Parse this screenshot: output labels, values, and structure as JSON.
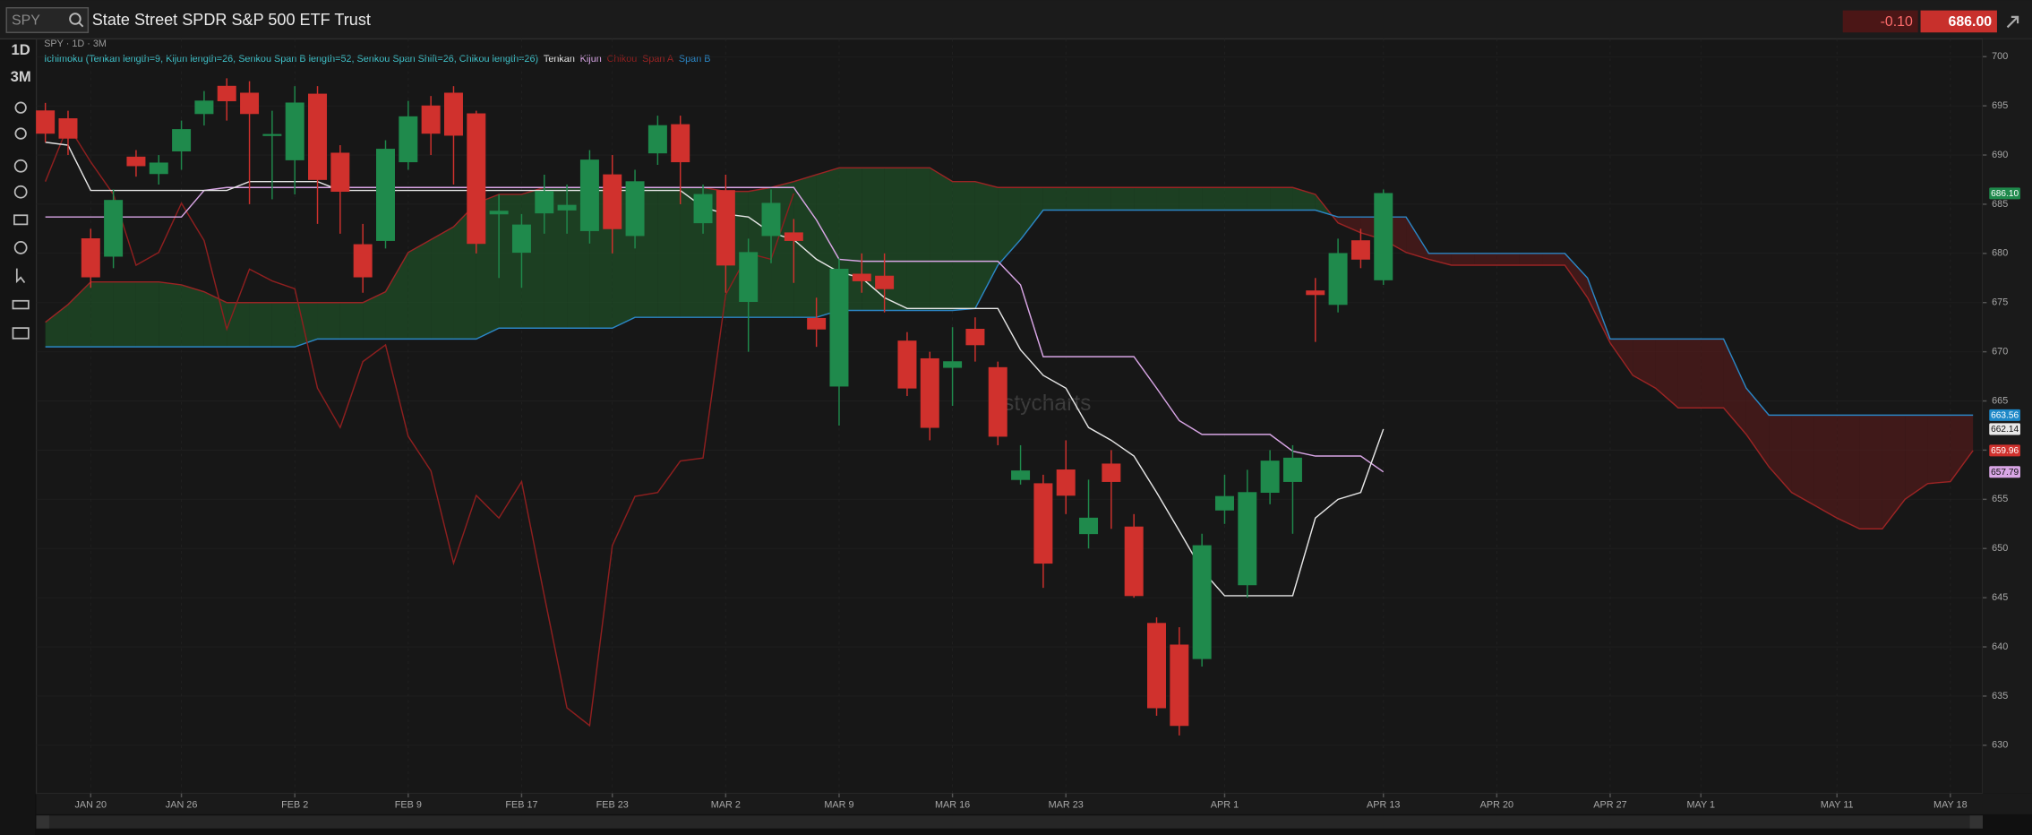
{
  "header": {
    "symbol": "SPY",
    "name": "State Street SPDR S&P 500 ETF Trust",
    "change": "-0.10",
    "price": "686.00"
  },
  "toolbar": {
    "interval": "1D",
    "range": "3M"
  },
  "chart_data": {
    "type": "candlestick",
    "subtitle": "SPY · 1D · 3M",
    "indicator": "Ichimoku (Tenkan length=9, Kijun length=26, Senkou Span B length=52, Senkou Span Shift=26, Chikou length=26)",
    "watermark": "stycharts",
    "categories": [
      null,
      null,
      "JAN 20",
      null,
      null,
      null,
      "JAN 26",
      null,
      null,
      null,
      null,
      "FEB 2",
      null,
      null,
      null,
      null,
      "FEB 9",
      null,
      null,
      null,
      null,
      "FEB 17",
      null,
      null,
      null,
      "FEB 23",
      null,
      null,
      null,
      null,
      "MAR 2",
      null,
      null,
      null,
      null,
      "MAR 9",
      null,
      null,
      null,
      null,
      "MAR 16",
      null,
      null,
      null,
      null,
      "MAR 23",
      null,
      null,
      null,
      null,
      null,
      null,
      "APR 1",
      null,
      null,
      null,
      null,
      null,
      null,
      "APR 13",
      null,
      null,
      null,
      null,
      "APR 20",
      null,
      null,
      null,
      null,
      "APR 27",
      null,
      null,
      null,
      "MAY 1",
      null,
      null,
      null,
      null,
      null,
      "MAY 11",
      null,
      null,
      null,
      null,
      "MAY 18",
      null
    ],
    "open": [
      694.5,
      693.7,
      681.5,
      679.7,
      689.8,
      688.1,
      690.4,
      694.2,
      697,
      696.3,
      692,
      689.5,
      696.2,
      690.2,
      680.9,
      681.3,
      689.3,
      695,
      696.3,
      694.2,
      684,
      680.1,
      684.1,
      684.4,
      682.3,
      688,
      681.8,
      690.2,
      693.1,
      683.1,
      686.4,
      675.1,
      681.8,
      682.1,
      673.4,
      666.5,
      677.9,
      677.7,
      671.1,
      669.3,
      668.4,
      672.3,
      668.4,
      657,
      656.6,
      658,
      651.5,
      658.6,
      652.2,
      642.4,
      640.2,
      638.8,
      653.9,
      646.3,
      655.7,
      656.8,
      676.2,
      674.8,
      681.3,
      677.3,
      null,
      null,
      null,
      null,
      null,
      null,
      null,
      null,
      null,
      null,
      null,
      null,
      null,
      null,
      null,
      null,
      null,
      null,
      null,
      null,
      null,
      null,
      null,
      null,
      null,
      null
    ],
    "high": [
      695.3,
      694.5,
      682.5,
      686.5,
      690.5,
      690,
      693.5,
      696.5,
      697.8,
      697.5,
      694.5,
      697,
      697,
      691,
      683,
      691.5,
      695.5,
      696,
      697,
      694.5,
      686,
      684,
      688,
      687,
      690.5,
      690,
      688.5,
      694,
      694,
      687,
      688,
      681.5,
      686.5,
      683.5,
      675.5,
      679.5,
      680,
      680,
      672,
      670,
      672.5,
      673.5,
      669,
      660.5,
      657.5,
      661,
      657,
      660,
      653.5,
      643,
      642,
      651.5,
      657.5,
      658,
      660,
      660.5,
      677.5,
      681.5,
      682.5,
      686.5,
      null,
      null,
      null,
      null,
      null,
      null,
      null,
      null,
      null,
      null,
      null,
      null,
      null,
      null,
      null,
      null,
      null,
      null,
      null,
      null,
      null,
      null,
      null,
      null,
      null,
      null
    ],
    "low": [
      691.3,
      690,
      676.5,
      678.5,
      687.8,
      687,
      688.5,
      693,
      693.5,
      685,
      685.5,
      686,
      683,
      682,
      676,
      680.5,
      688.5,
      690,
      687,
      680,
      677.5,
      676.5,
      682,
      682,
      681,
      680,
      680.5,
      689,
      685,
      682,
      676,
      670,
      679,
      677,
      670.5,
      662.5,
      676,
      674,
      665.5,
      661,
      664.5,
      669,
      660.5,
      656.5,
      646,
      653.5,
      650,
      652,
      645,
      633,
      631,
      638,
      652.5,
      645,
      654.5,
      651.5,
      671,
      674,
      678.5,
      676.8,
      null,
      null,
      null,
      null,
      null,
      null,
      null,
      null,
      null,
      null,
      null,
      null,
      null,
      null,
      null,
      null,
      null,
      null,
      null,
      null,
      null,
      null,
      null,
      null,
      null,
      null
    ],
    "close": [
      692.2,
      691.7,
      677.6,
      685.4,
      688.9,
      689.2,
      692.6,
      695.5,
      695.5,
      694.2,
      692.1,
      695.3,
      687.5,
      686.3,
      677.6,
      690.6,
      693.9,
      692.2,
      692,
      681,
      684.3,
      682.9,
      686.3,
      684.9,
      689.5,
      682.5,
      687.3,
      693,
      689.3,
      686,
      678.8,
      680.1,
      685.1,
      681.3,
      672.3,
      678.4,
      677.2,
      676.4,
      666.3,
      662.3,
      669,
      670.7,
      661.4,
      657.9,
      648.5,
      655.4,
      653.1,
      656.8,
      645.2,
      633.8,
      632,
      650.3,
      655.3,
      655.7,
      658.9,
      659.2,
      675.8,
      680,
      679.4,
      686.1,
      null,
      null,
      null,
      null,
      null,
      null,
      null,
      null,
      null,
      null,
      null,
      null,
      null,
      null,
      null,
      null,
      null,
      null,
      null,
      null,
      null,
      null,
      null,
      null,
      null,
      null
    ],
    "up_color": "#1f8a4c",
    "down_color": "#d0312d",
    "series": [
      {
        "name": "Tenkan",
        "color": "#e6e6e6",
        "values": [
          691.3,
          691,
          686.4,
          686.4,
          686.4,
          686.4,
          686.4,
          686.4,
          686.4,
          687.3,
          687.3,
          687.3,
          687.3,
          686.4,
          686.4,
          686.4,
          686.4,
          686.4,
          686.4,
          686.4,
          686.4,
          686.4,
          686.4,
          686.4,
          686.4,
          686.4,
          686.4,
          686.4,
          686.4,
          684.7,
          684,
          683.7,
          682.1,
          681.4,
          679.4,
          678.1,
          677.5,
          675.5,
          674.4,
          674.4,
          674.4,
          674.4,
          674.4,
          670.2,
          667.6,
          666.3,
          662.3,
          661,
          659.4,
          655.7,
          651.8,
          647.8,
          645.2,
          645.2,
          645.2,
          645.2,
          653.1,
          655,
          655.7,
          662.14,
          null,
          null,
          null,
          null,
          null,
          null,
          null,
          null,
          null,
          null,
          null,
          null,
          null,
          null,
          null,
          null,
          null,
          null,
          null,
          null,
          null,
          null,
          null,
          null,
          null,
          null
        ]
      },
      {
        "name": "Kijun",
        "color": "#d9a6e6",
        "values": [
          683.7,
          683.7,
          683.7,
          683.7,
          683.7,
          683.7,
          683.7,
          686.4,
          686.7,
          686.7,
          686.7,
          686.7,
          686.7,
          686.7,
          686.7,
          686.7,
          686.7,
          686.7,
          686.7,
          686.7,
          686.7,
          686.7,
          686.7,
          686.7,
          686.7,
          686.7,
          686.7,
          686.7,
          686.7,
          686.7,
          686.7,
          686.7,
          686.7,
          686.7,
          683.4,
          679.4,
          679.2,
          679.2,
          679.2,
          679.2,
          679.2,
          679.2,
          679.2,
          676.8,
          669.5,
          669.5,
          669.5,
          669.5,
          669.5,
          666.3,
          663,
          661.6,
          661.6,
          661.6,
          661.6,
          659.9,
          659.4,
          659.4,
          659.4,
          657.79,
          null,
          null,
          null,
          null,
          null,
          null,
          null,
          null,
          null,
          null,
          null,
          null,
          null,
          null,
          null,
          null,
          null,
          null,
          null,
          null,
          null,
          null,
          null,
          null,
          null,
          null
        ]
      },
      {
        "name": "Chikou",
        "color": "#8e1f1f",
        "values": [
          687.3,
          693,
          689.3,
          686,
          678.8,
          680.1,
          685.1,
          681.3,
          672.3,
          678.4,
          677.2,
          676.4,
          666.3,
          662.3,
          669,
          670.7,
          661.4,
          657.9,
          648.5,
          655.4,
          653.1,
          656.8,
          645.2,
          633.8,
          632,
          650.3,
          655.3,
          655.7,
          658.9,
          659.2,
          675.8,
          680,
          679.4,
          686.1,
          null,
          null,
          null,
          null,
          null,
          null,
          null,
          null,
          null,
          null,
          null,
          null,
          null,
          null,
          null,
          null,
          null,
          null,
          null,
          null,
          null,
          null,
          null,
          null,
          null,
          null,
          null,
          null,
          null,
          null,
          null,
          null,
          null,
          null,
          null,
          null,
          null,
          null,
          null,
          null,
          null,
          null,
          null,
          null,
          null,
          null,
          null,
          null,
          null,
          null,
          null,
          null
        ]
      },
      {
        "name": "Span A",
        "color": "#9b2424",
        "values": [
          673,
          674.8,
          677.1,
          677.1,
          677.1,
          677.1,
          676.8,
          676.1,
          675,
          675,
          675,
          675,
          675,
          675,
          675,
          676.1,
          680.1,
          681.4,
          682.7,
          685.1,
          686,
          686,
          686.7,
          686.7,
          686.7,
          686.7,
          686.7,
          686.7,
          686.7,
          686.7,
          686.3,
          686.3,
          686.7,
          687.3,
          688,
          688.7,
          688.7,
          688.7,
          688.7,
          688.7,
          687.3,
          687.3,
          686.7,
          686.7,
          686.7,
          686.7,
          686.7,
          686.7,
          686.7,
          686.7,
          686.7,
          686.7,
          686.7,
          686.7,
          686.7,
          686.7,
          686,
          683.1,
          682.1,
          681.4,
          680.1,
          679.4,
          678.8,
          678.8,
          678.8,
          678.8,
          678.8,
          678.8,
          675.5,
          670.9,
          667.6,
          666.3,
          664.3,
          664.3,
          664.3,
          661.6,
          658.3,
          655.7,
          654.4,
          653.1,
          652,
          652,
          655,
          656.6,
          656.8,
          659.96
        ]
      },
      {
        "name": "Span B",
        "color": "#2b86c5",
        "values": [
          670.5,
          670.5,
          670.5,
          670.5,
          670.5,
          670.5,
          670.5,
          670.5,
          670.5,
          670.5,
          670.5,
          670.5,
          671.3,
          671.3,
          671.3,
          671.3,
          671.3,
          671.3,
          671.3,
          671.3,
          672.4,
          672.4,
          672.4,
          672.4,
          672.4,
          672.4,
          673.5,
          673.5,
          673.5,
          673.5,
          673.5,
          673.5,
          673.5,
          673.5,
          673.5,
          674.2,
          674.2,
          674.2,
          674.2,
          674.2,
          674.2,
          674.4,
          678.8,
          681.4,
          684.4,
          684.4,
          684.4,
          684.4,
          684.4,
          684.4,
          684.4,
          684.4,
          684.4,
          684.4,
          684.4,
          684.4,
          684.4,
          683.7,
          683.7,
          683.7,
          683.7,
          680,
          680,
          680,
          680,
          680,
          680,
          680,
          677.5,
          671.3,
          671.3,
          671.3,
          671.3,
          671.3,
          671.3,
          666.3,
          663.56,
          663.56,
          663.56,
          663.56,
          663.56,
          663.56,
          663.56,
          663.56,
          663.56,
          663.56
        ]
      }
    ],
    "cloud_up_color": "#1f5a2a",
    "cloud_down_color": "#5c1a1a",
    "ylim": [
      625.1,
      701.8
    ],
    "yticks": [
      630,
      635,
      640,
      645,
      650,
      655,
      660,
      665,
      670,
      675,
      680,
      685,
      690,
      695,
      700
    ],
    "grid": true,
    "price_tags": [
      {
        "value": 686.1,
        "label": "686.10",
        "color": "#1f8a4c"
      },
      {
        "value": 663.56,
        "color": "#1e88c8"
      },
      {
        "value": 662.14,
        "color": "#e8e8e8"
      },
      {
        "value": 659.96,
        "color": "#d0312d"
      },
      {
        "value": 657.79,
        "color": "#d9a6e6"
      }
    ]
  }
}
